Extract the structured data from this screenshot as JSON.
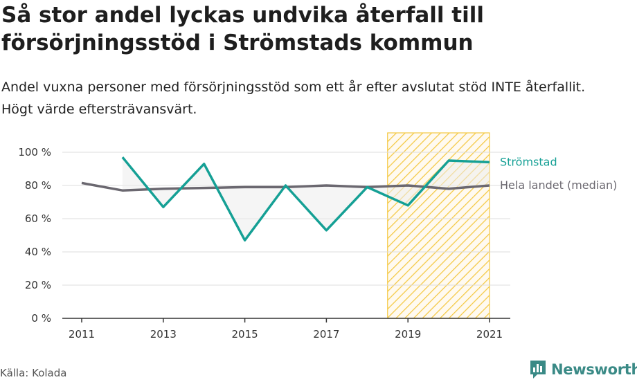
{
  "header": {
    "title": "Så stor andel lyckas undvika återfall till försörjningsstöd i Strömstads kommun",
    "subtitle": "Andel vuxna personer med försörjningsstöd som ett år efter avslutat stöd INTE återfallit. Högt värde eftersträvansvärt."
  },
  "footer": {
    "source": "Källa: Kolada",
    "brand": "Newsworthy"
  },
  "colors": {
    "stromstad": "#15a095",
    "national": "#6b6870",
    "highlight": "#f4c842"
  },
  "chart_data": {
    "type": "line",
    "x": [
      2011,
      2012,
      2013,
      2014,
      2015,
      2016,
      2017,
      2018,
      2019,
      2020,
      2021
    ],
    "series": [
      {
        "name": "Strömstad",
        "values": [
          null,
          97,
          67,
          93,
          47,
          80,
          53,
          79,
          68,
          95,
          94
        ]
      },
      {
        "name": "Hela landet (median)",
        "values": [
          81.5,
          77,
          78,
          78.5,
          79,
          79,
          80,
          79,
          80,
          78,
          80
        ]
      }
    ],
    "ylim": [
      0,
      100
    ],
    "yticks": [
      0,
      20,
      40,
      60,
      80,
      100
    ],
    "ytick_labels": [
      "0 %",
      "20 %",
      "40 %",
      "60 %",
      "80 %",
      "100 %"
    ],
    "xticks": [
      2011,
      2013,
      2015,
      2017,
      2019,
      2021
    ],
    "xtick_labels": [
      "2011",
      "2013",
      "2015",
      "2017",
      "2019",
      "2021"
    ],
    "highlight_range": [
      2018.5,
      2021
    ],
    "grid": true,
    "legend": "right, at line ends"
  }
}
